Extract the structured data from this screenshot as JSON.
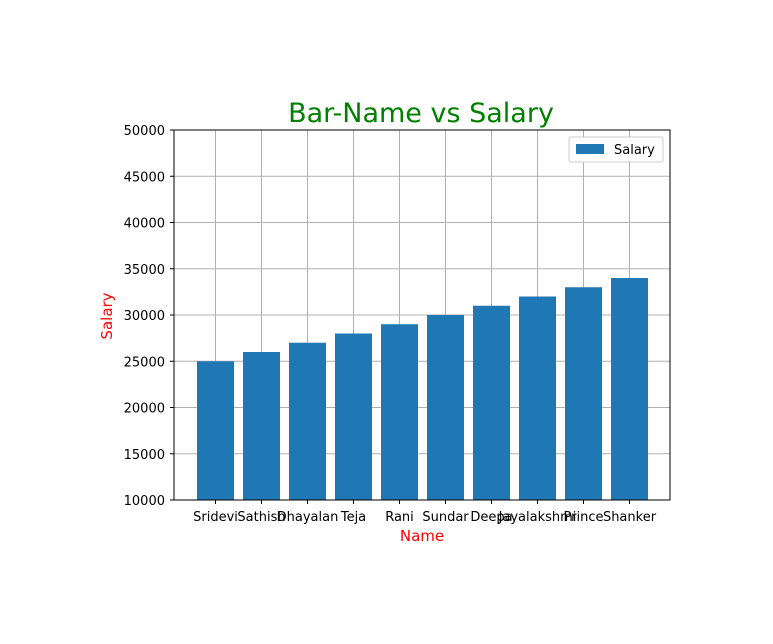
{
  "chart_data": {
    "type": "bar",
    "title": "Bar-Name vs Salary",
    "xlabel": "Name",
    "ylabel": "Salary",
    "categories": [
      "Sridevi",
      "Sathish",
      "Dhayalan",
      "Teja",
      "Rani",
      "Sundar",
      "Deepa",
      "Jayalakshmi",
      "Prince",
      "Shanker"
    ],
    "series": [
      {
        "name": "Salary",
        "values": [
          25000,
          26000,
          27000,
          28000,
          29000,
          30000,
          31000,
          32000,
          33000,
          34000
        ]
      }
    ],
    "ylim": [
      10000,
      50000
    ],
    "yticks": [
      10000,
      15000,
      20000,
      25000,
      30000,
      35000,
      40000,
      45000,
      50000
    ],
    "grid": true,
    "legend_position": "top-right",
    "colors": {
      "bar": "#1f77b4",
      "title": "#008000",
      "axis_label": "#ff0000",
      "grid": "#b0b0b0"
    }
  }
}
